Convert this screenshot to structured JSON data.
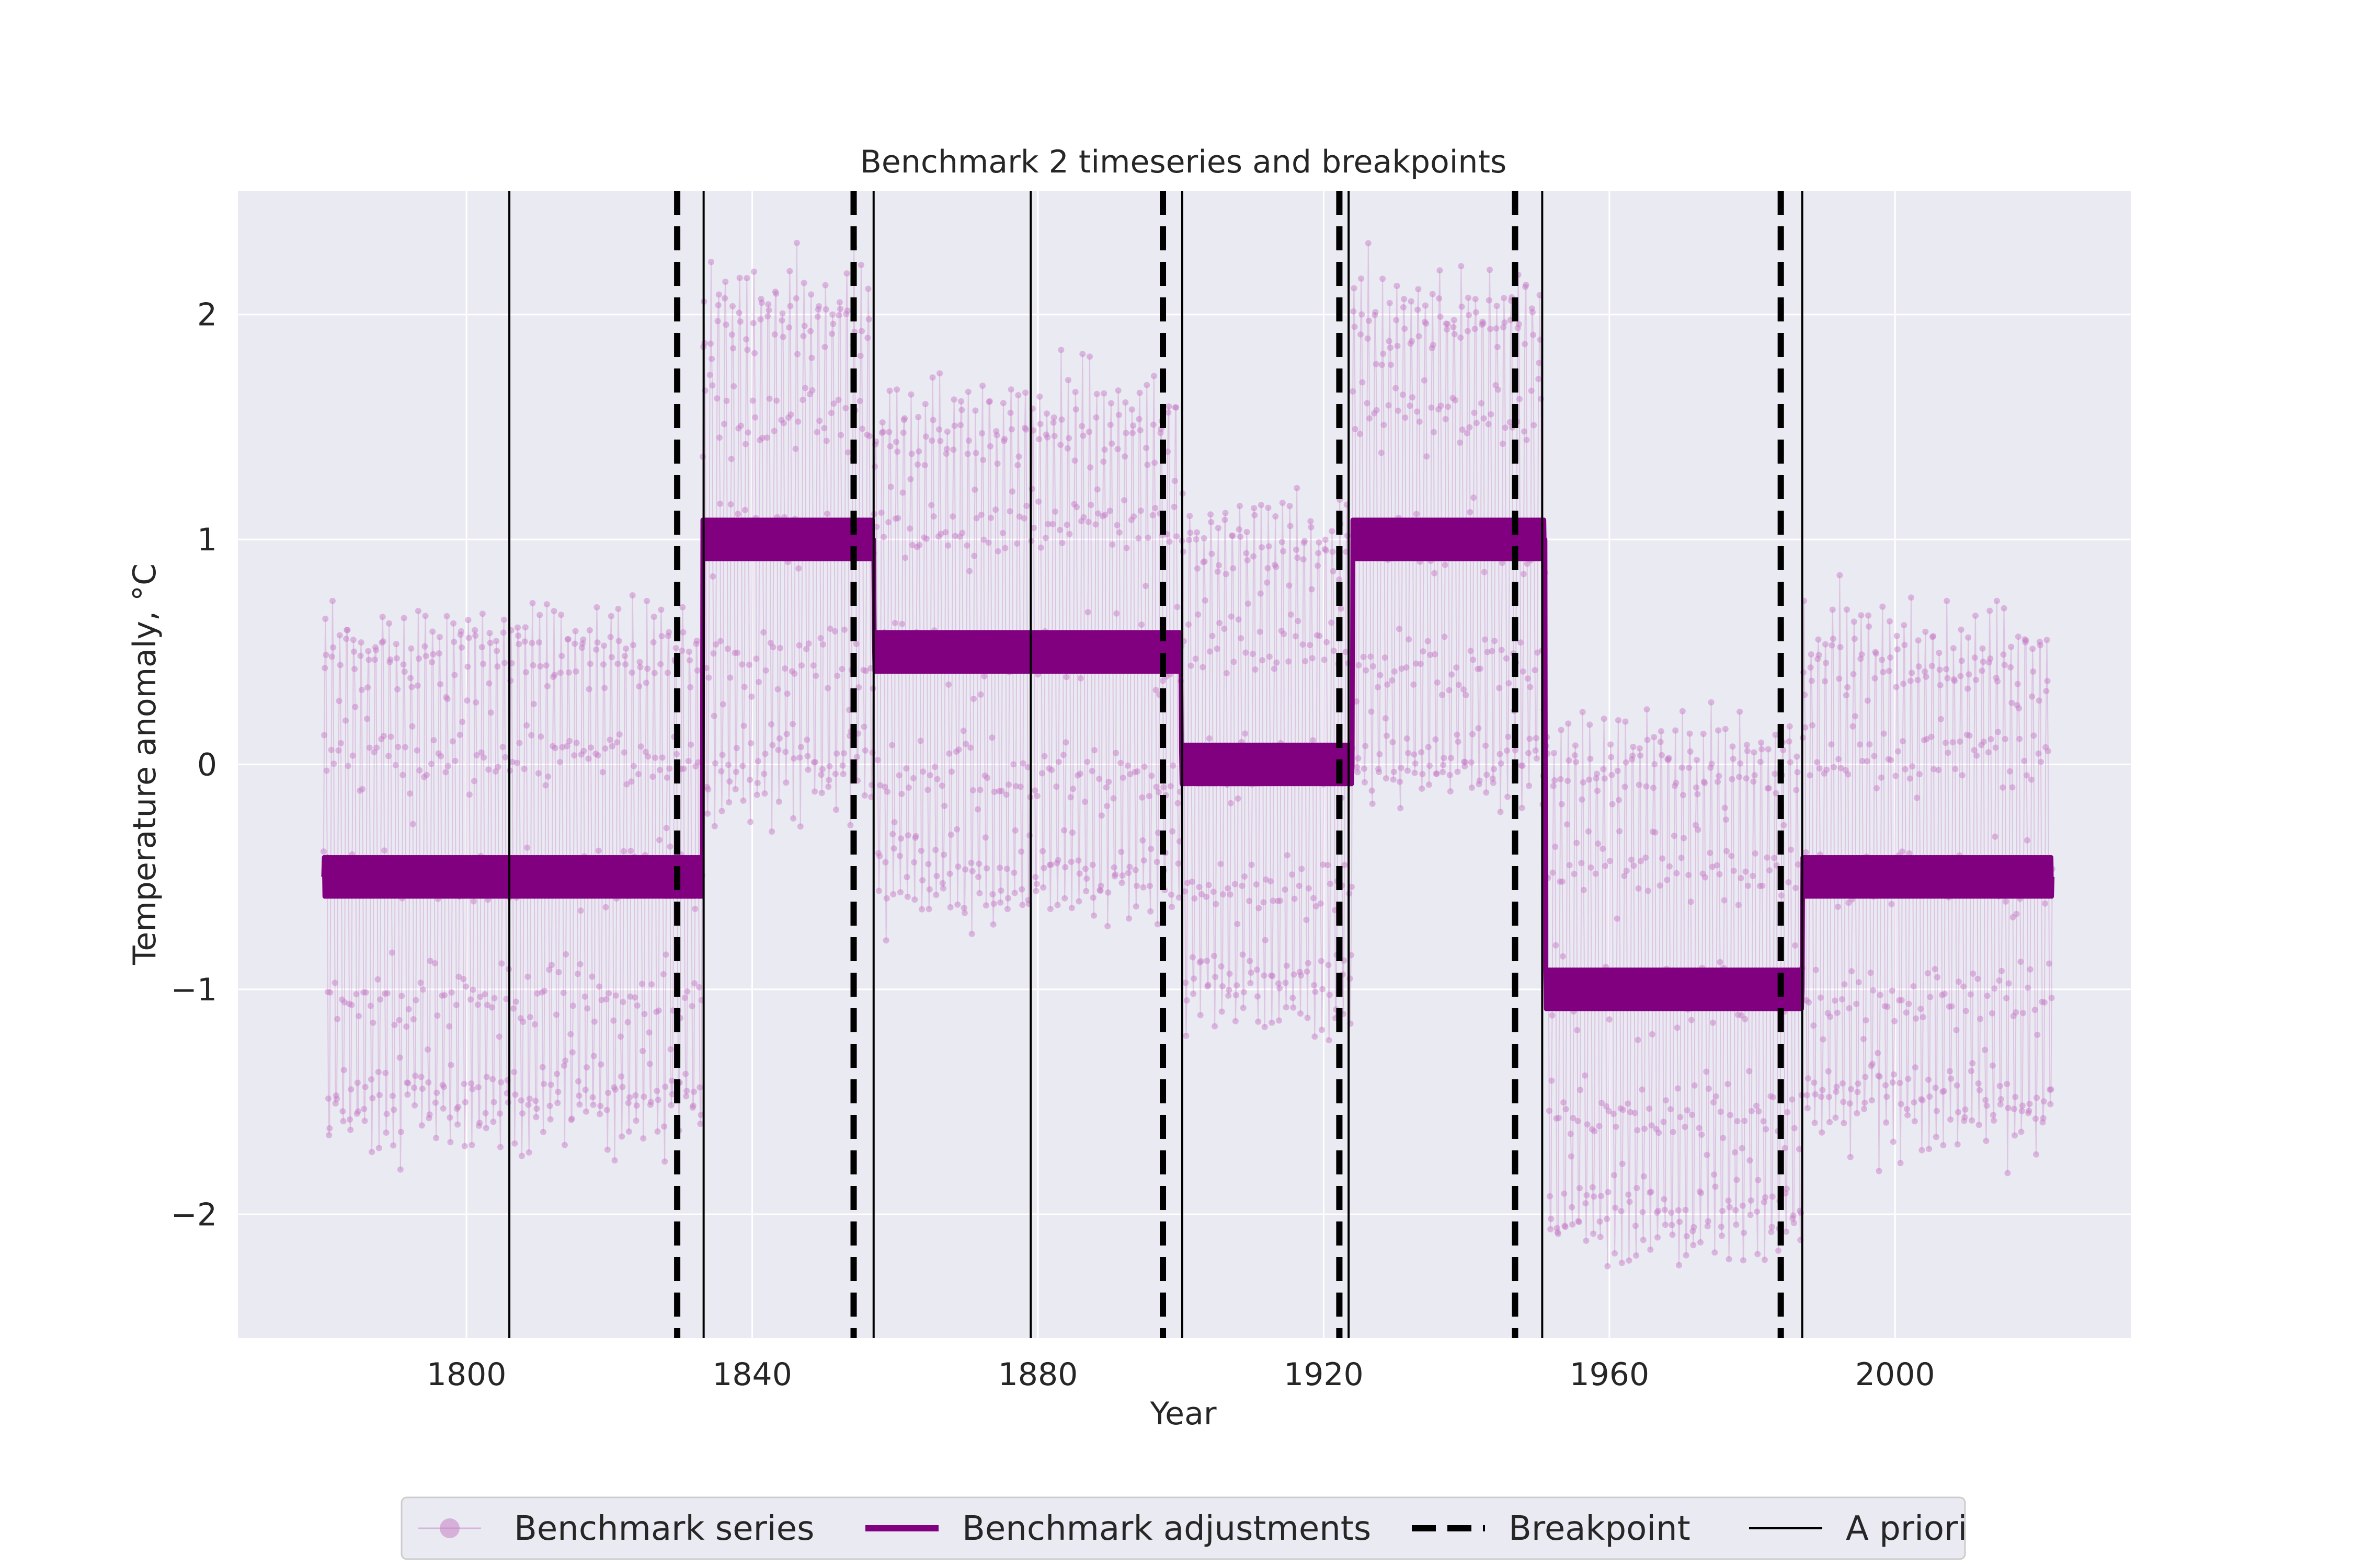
{
  "chart_data": {
    "type": "line",
    "title": "Benchmark 2 timeseries and breakpoints",
    "xlabel": "Year",
    "ylabel": "Temperature anomaly, °C",
    "xlim": [
      1768,
      2033
    ],
    "ylim": [
      -2.55,
      2.55
    ],
    "xticks": [
      1800,
      1840,
      1880,
      1920,
      1960,
      2000
    ],
    "xtick_labels": [
      "1800",
      "1840",
      "1880",
      "1920",
      "1960",
      "2000"
    ],
    "yticks": [
      -2,
      -1,
      0,
      1,
      2
    ],
    "ytick_labels": [
      "−2",
      "−1",
      "0",
      "1",
      "2"
    ],
    "grid": true,
    "legend_position": "bottom-center",
    "colors": {
      "background": "#eaeaf2",
      "series": "#c77fc7",
      "adjustments": "#800080",
      "breakpoint": "#000000",
      "apriori": "#000000",
      "grid": "#ffffff"
    },
    "series_range": [
      1780,
      2022
    ],
    "segments": [
      {
        "start": 1780,
        "end": 1833,
        "level": -0.5
      },
      {
        "start": 1833,
        "end": 1857,
        "level": 1.0
      },
      {
        "start": 1857,
        "end": 1900,
        "level": 0.5
      },
      {
        "start": 1900,
        "end": 1924,
        "level": 0.0
      },
      {
        "start": 1924,
        "end": 1951,
        "level": 1.0
      },
      {
        "start": 1951,
        "end": 1987,
        "level": -1.0
      },
      {
        "start": 1987,
        "end": 2022,
        "level": -0.5
      }
    ],
    "seasonal_amplitude": 1.1,
    "adjustment_amplitude": 0.1,
    "breakpoints": [
      1829.5,
      1854.2,
      1897.5,
      1922.2,
      1946.8,
      1984.0
    ],
    "apriori": [
      1806.0,
      1833.2,
      1857.0,
      1879.0,
      1900.2,
      1923.5,
      1950.6,
      1987.0
    ],
    "legend": [
      {
        "label": "Benchmark series"
      },
      {
        "label": "Benchmark adjustments"
      },
      {
        "label": "Breakpoint"
      },
      {
        "label": "A priori"
      }
    ]
  }
}
